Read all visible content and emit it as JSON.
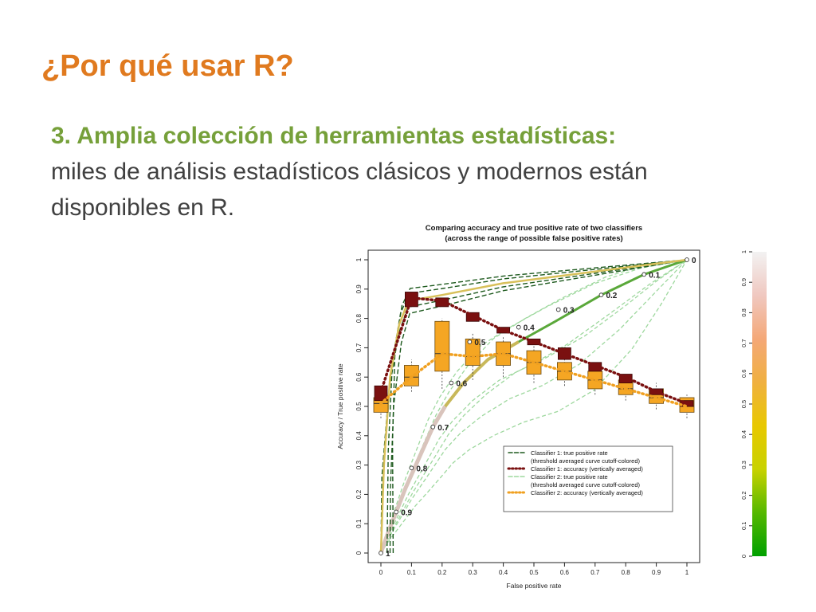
{
  "slide": {
    "title": "¿Por qué usar R?",
    "point_heading": "3. Amplia colección de herramientas estadísticas:",
    "point_body": "miles de análisis estadísticos clásicos y modernos están disponibles en R."
  },
  "chart_data": {
    "type": "line",
    "title": "Comparing accuracy and true positive rate of two classifiers",
    "subtitle": "(across the range of possible false positive rates)",
    "xlabel": "False positive rate",
    "ylabel": "Accuracy / True positive rate",
    "xlim": [
      0,
      1
    ],
    "ylim": [
      0,
      1
    ],
    "xticks": [
      "0",
      "0.1",
      "0.2",
      "0.3",
      "0.4",
      "0.5",
      "0.6",
      "0.7",
      "0.8",
      "0.9",
      "1"
    ],
    "yticks": [
      "0",
      "0.1",
      "0.2",
      "0.3",
      "0.4",
      "0.5",
      "0.6",
      "0.7",
      "0.8",
      "0.9",
      "1"
    ],
    "colorbar_ticks": [
      "0",
      "0.1",
      "0.2",
      "0.3",
      "0.4",
      "0.5",
      "0.6",
      "0.7",
      "0.8",
      "0.9",
      "1"
    ],
    "colorbar_gradient": [
      "#00a000",
      "#55b800",
      "#c8d200",
      "#e8c800",
      "#f0b040",
      "#f4a878",
      "#f0c8c0",
      "#f2f2f2"
    ],
    "legend_position": "bottom-right",
    "legend": [
      {
        "label": "Classifier 1: true positive rate",
        "label2": "(threshold averaged curve cutoff-colored)",
        "color": "#1e5a1e",
        "style": "dashed"
      },
      {
        "label": "Classifier 1: accuracy (vertically averaged)",
        "label2": "",
        "color": "#7a1010",
        "style": "dotted"
      },
      {
        "label": "Classifier 2: true positive rate",
        "label2": "(threshold averaged curve cutoff-colored)",
        "color": "#9ed89e",
        "style": "dashed"
      },
      {
        "label": "Classifier 2: accuracy (vertically averaged)",
        "label2": "",
        "color": "#f0a020",
        "style": "dotted"
      }
    ],
    "roc_curve_2": {
      "name": "Classifier 2: true positive rate",
      "points": [
        [
          0,
          0
        ],
        [
          0.02,
          0.06
        ],
        [
          0.05,
          0.14
        ],
        [
          0.08,
          0.22
        ],
        [
          0.11,
          0.29
        ],
        [
          0.14,
          0.36
        ],
        [
          0.17,
          0.43
        ],
        [
          0.21,
          0.5
        ],
        [
          0.27,
          0.58
        ],
        [
          0.35,
          0.66
        ],
        [
          0.45,
          0.72
        ],
        [
          0.57,
          0.79
        ],
        [
          0.72,
          0.88
        ],
        [
          0.86,
          0.95
        ],
        [
          1,
          1
        ]
      ]
    },
    "roc_curve_1": {
      "name": "Classifier 1: true positive rate",
      "points": [
        [
          0,
          0
        ],
        [
          0.01,
          0.3
        ],
        [
          0.03,
          0.6
        ],
        [
          0.06,
          0.78
        ],
        [
          0.09,
          0.86
        ],
        [
          0.2,
          0.88
        ],
        [
          0.4,
          0.92
        ],
        [
          0.7,
          0.96
        ],
        [
          1,
          1
        ]
      ]
    },
    "cutoff_labels": [
      {
        "label": "1",
        "x": 0,
        "y": 0
      },
      {
        "label": "0.9",
        "x": 0.05,
        "y": 0.14
      },
      {
        "label": "0.8",
        "x": 0.1,
        "y": 0.29
      },
      {
        "label": "0.7",
        "x": 0.17,
        "y": 0.43
      },
      {
        "label": "0.6",
        "x": 0.23,
        "y": 0.58
      },
      {
        "label": "0.5",
        "x": 0.29,
        "y": 0.72
      },
      {
        "label": "0.4",
        "x": 0.45,
        "y": 0.77
      },
      {
        "label": "0.3",
        "x": 0.58,
        "y": 0.83
      },
      {
        "label": "0.2",
        "x": 0.72,
        "y": 0.88
      },
      {
        "label": "0.1",
        "x": 0.86,
        "y": 0.95
      },
      {
        "label": "0",
        "x": 1,
        "y": 1
      }
    ],
    "accuracy_1": {
      "name": "Classifier 1: accuracy (vertically averaged)",
      "x": [
        0,
        0.1,
        0.2,
        0.3,
        0.4,
        0.5,
        0.6,
        0.7,
        0.8,
        0.9,
        1
      ],
      "median": [
        0.55,
        0.87,
        0.86,
        0.81,
        0.76,
        0.72,
        0.68,
        0.64,
        0.6,
        0.55,
        0.51
      ],
      "q1": [
        0.52,
        0.84,
        0.84,
        0.79,
        0.75,
        0.71,
        0.66,
        0.62,
        0.58,
        0.54,
        0.5
      ],
      "q3": [
        0.57,
        0.89,
        0.87,
        0.82,
        0.77,
        0.73,
        0.7,
        0.65,
        0.61,
        0.56,
        0.52
      ]
    },
    "accuracy_2": {
      "name": "Classifier 2: accuracy (vertically averaged)",
      "x": [
        0,
        0.1,
        0.2,
        0.3,
        0.4,
        0.5,
        0.6,
        0.7,
        0.8,
        0.9,
        1
      ],
      "median": [
        0.51,
        0.6,
        0.68,
        0.67,
        0.68,
        0.65,
        0.62,
        0.59,
        0.56,
        0.53,
        0.5
      ],
      "q1": [
        0.48,
        0.57,
        0.62,
        0.64,
        0.64,
        0.61,
        0.59,
        0.56,
        0.54,
        0.51,
        0.48
      ],
      "q3": [
        0.53,
        0.64,
        0.79,
        0.73,
        0.72,
        0.69,
        0.65,
        0.62,
        0.59,
        0.56,
        0.53
      ],
      "min": [
        0.46,
        0.55,
        0.56,
        0.59,
        0.6,
        0.58,
        0.57,
        0.54,
        0.52,
        0.49,
        0.46
      ],
      "max": [
        0.56,
        0.66,
        0.8,
        0.75,
        0.74,
        0.72,
        0.68,
        0.64,
        0.61,
        0.58,
        0.54
      ]
    }
  }
}
